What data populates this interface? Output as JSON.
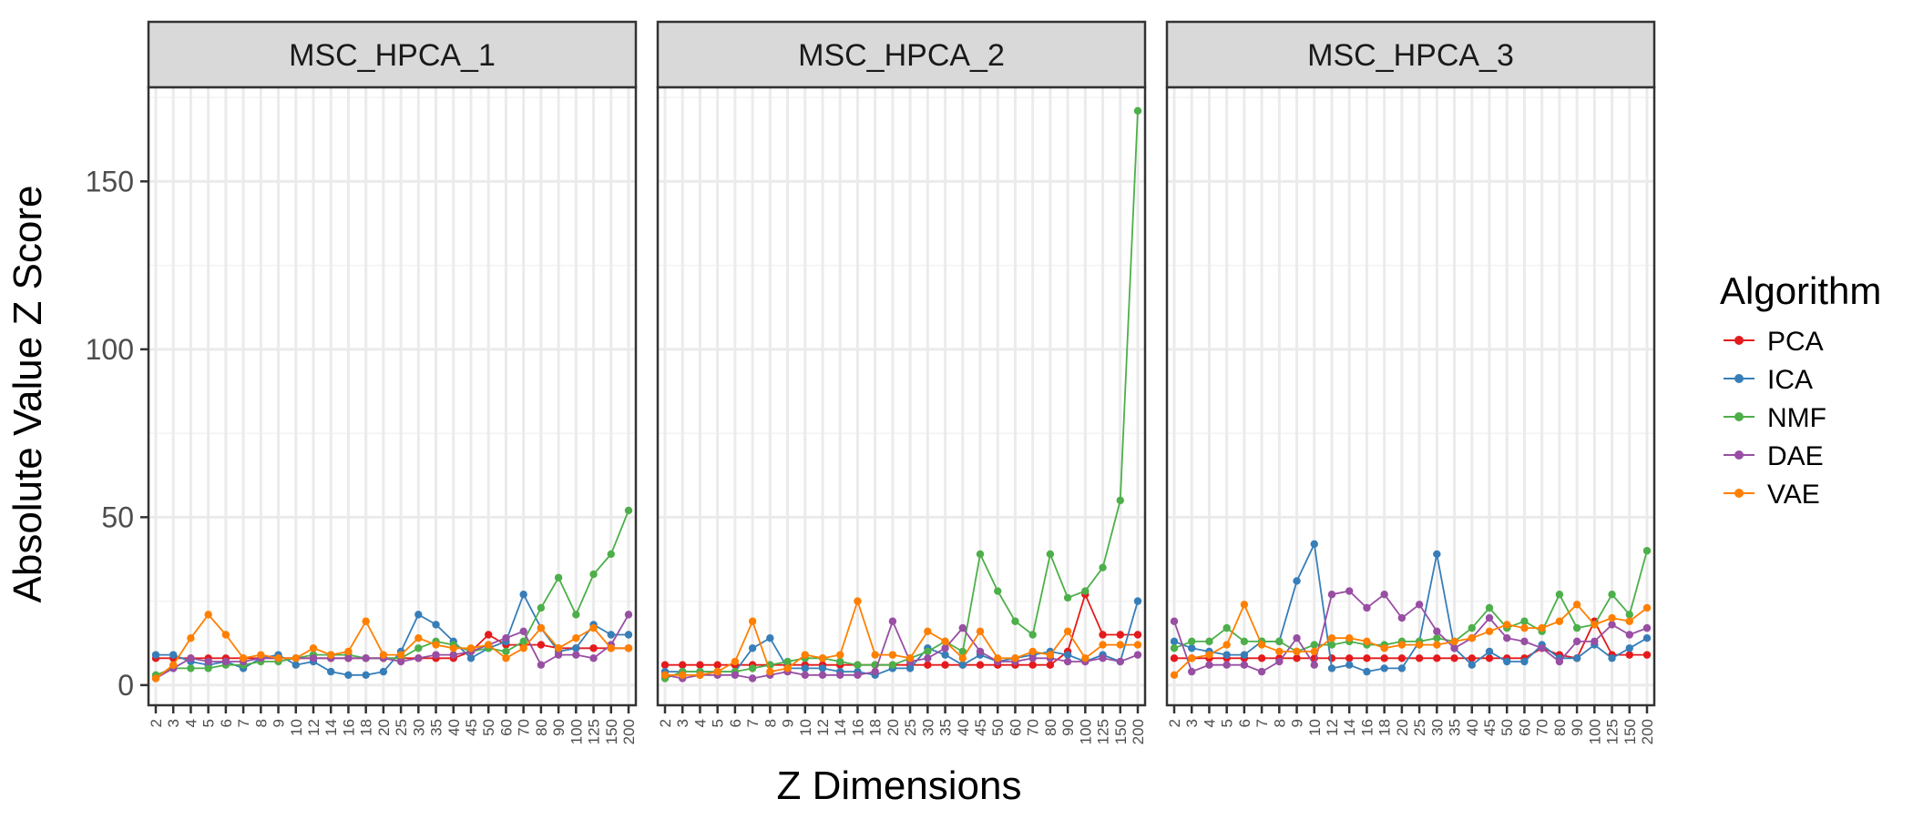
{
  "chart_data": {
    "type": "line",
    "xlabel": "Z Dimensions",
    "ylabel": "Absolute Value Z Score",
    "ylim": [
      -6,
      178
    ],
    "yticks": [
      0,
      50,
      100,
      150
    ],
    "ytick_labels": [
      "0",
      "50",
      "100",
      "150"
    ],
    "x": [
      "2",
      "3",
      "4",
      "5",
      "6",
      "7",
      "8",
      "9",
      "10",
      "12",
      "14",
      "16",
      "18",
      "20",
      "25",
      "30",
      "35",
      "40",
      "45",
      "50",
      "60",
      "70",
      "80",
      "90",
      "100",
      "125",
      "150",
      "200"
    ],
    "legend_title": "Algorithm",
    "legend_position": "right",
    "grid": true,
    "panels": [
      {
        "title": "MSC_HPCA_1",
        "series": [
          {
            "name": "PCA",
            "color": "#E41A1C",
            "values": [
              8,
              8,
              8,
              8,
              8,
              8,
              8,
              8,
              8,
              8,
              8,
              8,
              8,
              8,
              8,
              8,
              8,
              8,
              10,
              15,
              12,
              12,
              12,
              11,
              11,
              11,
              11,
              11
            ]
          },
          {
            "name": "ICA",
            "color": "#377EB8",
            "values": [
              9,
              9,
              7,
              6,
              7,
              5,
              8,
              9,
              6,
              7,
              4,
              3,
              3,
              4,
              10,
              21,
              18,
              13,
              8,
              11,
              13,
              27,
              17,
              10,
              11,
              18,
              15,
              15
            ]
          },
          {
            "name": "NMF",
            "color": "#4DAF4A",
            "values": [
              3,
              5,
              5,
              5,
              6,
              6,
              7,
              7,
              8,
              9,
              9,
              9,
              8,
              8,
              8,
              11,
              13,
              12,
              10,
              11,
              10,
              13,
              23,
              32,
              21,
              33,
              39,
              52
            ]
          },
          {
            "name": "DAE",
            "color": "#984EA3",
            "values": [
              2,
              5,
              8,
              7,
              7,
              7,
              8,
              8,
              8,
              8,
              8,
              8,
              8,
              8,
              7,
              8,
              9,
              9,
              10,
              12,
              14,
              16,
              6,
              9,
              9,
              8,
              12,
              21
            ]
          },
          {
            "name": "VAE",
            "color": "#FF7F00",
            "values": [
              2,
              6,
              14,
              21,
              15,
              8,
              9,
              8,
              8,
              11,
              9,
              10,
              19,
              9,
              9,
              14,
              12,
              11,
              11,
              12,
              8,
              11,
              17,
              11,
              14,
              17,
              11,
              11
            ]
          }
        ]
      },
      {
        "title": "MSC_HPCA_2",
        "series": [
          {
            "name": "PCA",
            "color": "#E41A1C",
            "values": [
              6,
              6,
              6,
              6,
              6,
              6,
              6,
              6,
              6,
              6,
              6,
              6,
              6,
              6,
              6,
              6,
              6,
              6,
              6,
              6,
              6,
              6,
              6,
              10,
              27,
              15,
              15,
              15
            ]
          },
          {
            "name": "ICA",
            "color": "#377EB8",
            "values": [
              4,
              4,
              4,
              4,
              4,
              11,
              14,
              5,
              5,
              5,
              4,
              4,
              3,
              5,
              5,
              11,
              9,
              6,
              9,
              7,
              8,
              9,
              10,
              9,
              7,
              9,
              7,
              25
            ]
          },
          {
            "name": "NMF",
            "color": "#4DAF4A",
            "values": [
              2,
              4,
              4,
              4,
              4,
              5,
              6,
              7,
              8,
              8,
              7,
              6,
              6,
              6,
              8,
              10,
              13,
              10,
              39,
              28,
              19,
              15,
              39,
              26,
              28,
              35,
              55,
              171
            ]
          },
          {
            "name": "DAE",
            "color": "#984EA3",
            "values": [
              3,
              2,
              3,
              3,
              3,
              2,
              3,
              4,
              3,
              3,
              3,
              3,
              4,
              19,
              7,
              8,
              11,
              17,
              10,
              7,
              7,
              8,
              8,
              7,
              7,
              8,
              7,
              9
            ]
          },
          {
            "name": "VAE",
            "color": "#FF7F00",
            "values": [
              3,
              3,
              3,
              4,
              7,
              19,
              4,
              5,
              9,
              8,
              9,
              25,
              9,
              9,
              8,
              16,
              13,
              8,
              16,
              8,
              8,
              10,
              9,
              16,
              8,
              12,
              12,
              12
            ]
          }
        ]
      },
      {
        "title": "MSC_HPCA_3",
        "series": [
          {
            "name": "PCA",
            "color": "#E41A1C",
            "values": [
              8,
              8,
              8,
              8,
              8,
              8,
              8,
              8,
              8,
              8,
              8,
              8,
              8,
              8,
              8,
              8,
              8,
              8,
              8,
              8,
              8,
              11,
              9,
              8,
              19,
              9,
              9,
              9
            ]
          },
          {
            "name": "ICA",
            "color": "#377EB8",
            "values": [
              13,
              11,
              10,
              9,
              9,
              13,
              13,
              31,
              42,
              5,
              6,
              4,
              5,
              5,
              13,
              39,
              11,
              6,
              10,
              7,
              7,
              12,
              8,
              8,
              12,
              8,
              11,
              14
            ]
          },
          {
            "name": "NMF",
            "color": "#4DAF4A",
            "values": [
              11,
              13,
              13,
              17,
              13,
              13,
              13,
              10,
              12,
              12,
              13,
              12,
              12,
              13,
              13,
              14,
              13,
              17,
              23,
              17,
              19,
              16,
              27,
              17,
              18,
              27,
              21,
              40
            ]
          },
          {
            "name": "DAE",
            "color": "#984EA3",
            "values": [
              19,
              4,
              6,
              6,
              6,
              4,
              7,
              14,
              6,
              27,
              28,
              23,
              27,
              20,
              24,
              16,
              11,
              14,
              20,
              14,
              13,
              11,
              7,
              13,
              13,
              18,
              15,
              17
            ]
          },
          {
            "name": "VAE",
            "color": "#FF7F00",
            "values": [
              3,
              8,
              9,
              12,
              24,
              12,
              10,
              10,
              10,
              14,
              14,
              13,
              11,
              12,
              12,
              12,
              13,
              14,
              16,
              18,
              17,
              17,
              19,
              24,
              18,
              20,
              19,
              23
            ]
          }
        ]
      }
    ]
  }
}
